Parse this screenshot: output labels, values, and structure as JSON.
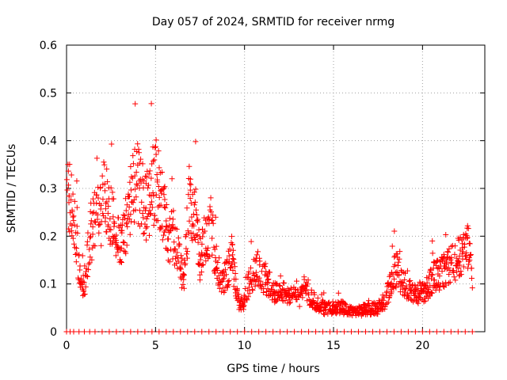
{
  "chart_data": {
    "type": "scatter",
    "title": "Day 057 of 2024, SRMTID for receiver nrmg",
    "xlabel": "GPS time / hours",
    "ylabel": "SRMTID / TECUs",
    "xlim": [
      0,
      23.5
    ],
    "ylim": [
      0,
      0.6
    ],
    "xticks": [
      0,
      5,
      10,
      15,
      20
    ],
    "xtick_labels": [
      "0",
      "5",
      "10",
      "15",
      "20"
    ],
    "yticks": [
      0,
      0.1,
      0.2,
      0.3,
      0.4,
      0.5,
      0.6
    ],
    "ytick_labels": [
      "0",
      "0.1",
      "0.2",
      "0.3",
      "0.4",
      "0.5",
      "0.6"
    ],
    "grid": true,
    "marker": "+",
    "color": "#ff0000",
    "trend_x": [
      0,
      0.2,
      0.5,
      0.8,
      1.0,
      1.3,
      1.6,
      1.9,
      2.1,
      2.4,
      2.7,
      3.0,
      3.3,
      3.6,
      3.9,
      4.2,
      4.5,
      4.8,
      5.1,
      5.4,
      5.7,
      6.0,
      6.3,
      6.6,
      6.9,
      7.2,
      7.5,
      7.8,
      8.1,
      8.4,
      8.7,
      9.0,
      9.3,
      9.6,
      9.9,
      10.2,
      10.5,
      10.8,
      11.1,
      11.4,
      11.7,
      12.0,
      12.5,
      13.0,
      13.5,
      14.0,
      14.5,
      15.0,
      15.5,
      16.0,
      16.5,
      17.0,
      17.5,
      18.0,
      18.3,
      18.6,
      18.9,
      19.2,
      19.5,
      19.8,
      20.1,
      20.4,
      20.7,
      21.0,
      21.3,
      21.6,
      21.9,
      22.2,
      22.5,
      22.8
    ],
    "trend_y": [
      0.32,
      0.28,
      0.22,
      0.09,
      0.1,
      0.2,
      0.22,
      0.24,
      0.28,
      0.26,
      0.22,
      0.18,
      0.2,
      0.28,
      0.32,
      0.3,
      0.26,
      0.3,
      0.32,
      0.26,
      0.2,
      0.2,
      0.16,
      0.1,
      0.28,
      0.25,
      0.15,
      0.2,
      0.22,
      0.15,
      0.1,
      0.12,
      0.16,
      0.07,
      0.05,
      0.1,
      0.12,
      0.13,
      0.11,
      0.1,
      0.08,
      0.09,
      0.08,
      0.07,
      0.08,
      0.06,
      0.05,
      0.05,
      0.05,
      0.04,
      0.045,
      0.045,
      0.05,
      0.07,
      0.12,
      0.13,
      0.1,
      0.09,
      0.08,
      0.08,
      0.08,
      0.1,
      0.12,
      0.12,
      0.13,
      0.14,
      0.15,
      0.16,
      0.18,
      0.12
    ],
    "zero_x": [
      0,
      0.2,
      0.4,
      0.7,
      1.0,
      1.3,
      1.6,
      2.0,
      2.4,
      2.8,
      3.2,
      3.6,
      4.0,
      4.4,
      4.8,
      5.2,
      5.6,
      6.0,
      6.4,
      6.8,
      7.2,
      7.6,
      8.0,
      8.4,
      8.8,
      9.2,
      9.6,
      10.0,
      10.4,
      10.8,
      11.2,
      11.6,
      12.0,
      12.4,
      12.8,
      13.2,
      13.6,
      14.0,
      14.4,
      14.8,
      15.2,
      15.6,
      16.0,
      16.4,
      16.8,
      17.2,
      17.6,
      18.0,
      18.4,
      18.8,
      19.2,
      19.6,
      20.0,
      20.4,
      20.8,
      21.2,
      21.6,
      22.0,
      22.4,
      22.8
    ]
  }
}
